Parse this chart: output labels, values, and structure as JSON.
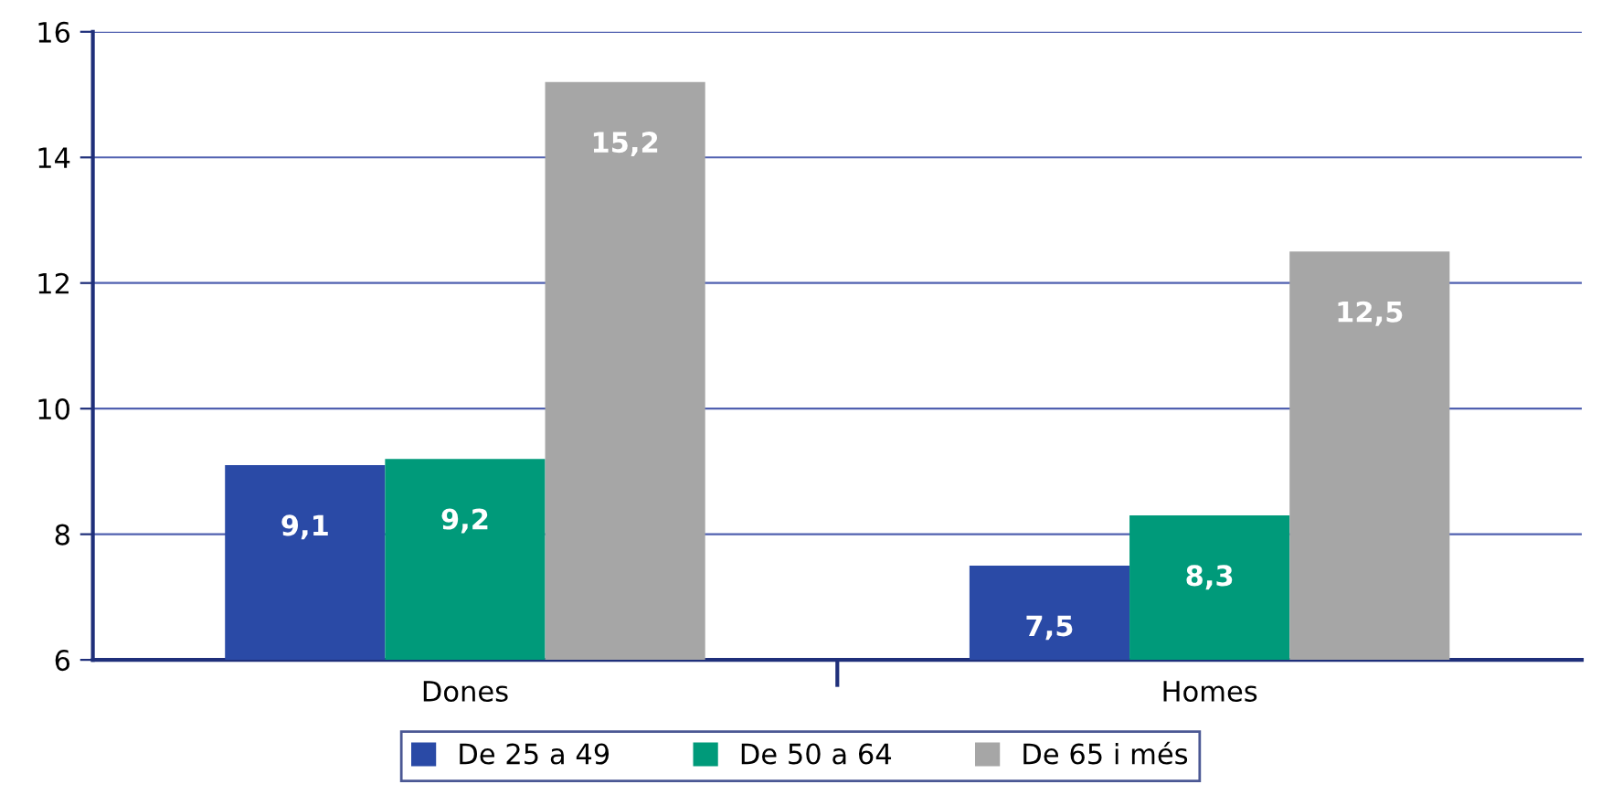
{
  "chart_data": {
    "type": "bar",
    "categories": [
      "Dones",
      "Homes"
    ],
    "series": [
      {
        "name": "De 25 a 49",
        "color": "#2a4aa6",
        "values": [
          9.1,
          7.5
        ]
      },
      {
        "name": "De 50 a 64",
        "color": "#009a7a",
        "values": [
          9.2,
          8.3
        ]
      },
      {
        "name": "De 65 i més",
        "color": "#a6a6a6",
        "values": [
          15.2,
          12.5
        ]
      }
    ],
    "value_labels": [
      [
        "9,1",
        "7,5"
      ],
      [
        "9,2",
        "8,3"
      ],
      [
        "15,2",
        "12,5"
      ]
    ],
    "ylim": [
      6,
      16
    ],
    "yticks": [
      6,
      8,
      10,
      12,
      14,
      16
    ],
    "grid": "y",
    "legend": "bottom"
  }
}
